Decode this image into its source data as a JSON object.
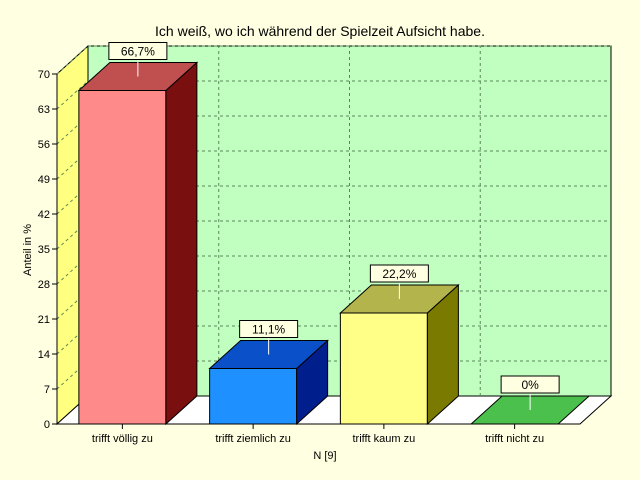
{
  "chart_data": {
    "type": "bar",
    "title": "Ich weiß, wo ich während der Spielzeit Aufsicht habe.",
    "xlabel": "N [9]",
    "ylabel": "Anteil in %",
    "ylim": [
      0,
      70
    ],
    "yticks": [
      0,
      7,
      14,
      21,
      28,
      35,
      42,
      49,
      56,
      63,
      70
    ],
    "categories": [
      "trifft völlig zu",
      "trifft ziemlich zu",
      "trifft kaum zu",
      "trifft nicht zu"
    ],
    "values": [
      66.7,
      11.1,
      22.2,
      0
    ],
    "data_labels": [
      "66,7%",
      "11,1%",
      "22,2%",
      "0%"
    ],
    "grid": true,
    "legend": "none",
    "colors": {
      "background": "#ffffe1",
      "plot_back_wall": "#c0ffc0",
      "plot_side_wall": "#ffff80",
      "plot_floor": "#ffffff",
      "grid": "#5a8a5a",
      "bars": [
        {
          "front": "#ff8a8a",
          "top": "#c05050",
          "side": "#7a0f0f"
        },
        {
          "front": "#1e90ff",
          "top": "#0a50c8",
          "side": "#001e8c"
        },
        {
          "front": "#ffff88",
          "top": "#b4b44c",
          "side": "#7a7a00"
        },
        {
          "front": "#4cc04c",
          "top": "#4cc04c",
          "side": "#2e8a2e"
        }
      ]
    }
  }
}
